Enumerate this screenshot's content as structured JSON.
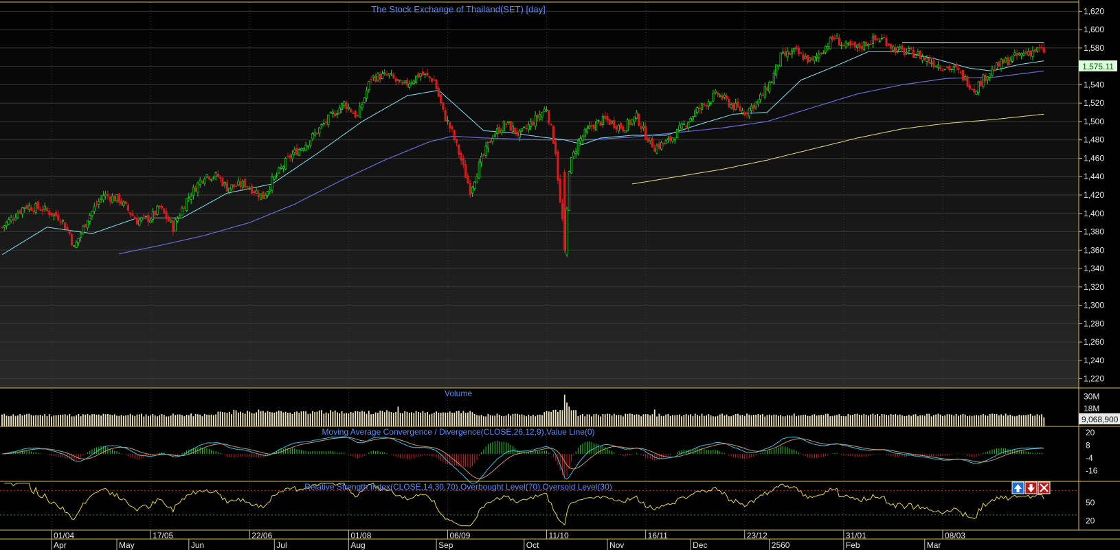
{
  "price_panel": {
    "title": "The Stock Exchange of Thailand(SET) [day]",
    "last_value_label": "1,575.11",
    "y_ticks": [
      "1,620",
      "1,600",
      "1,580",
      "1,560",
      "1,540",
      "1,520",
      "1,500",
      "1,480",
      "1,460",
      "1,440",
      "1,420",
      "1,400",
      "1,380",
      "1,360",
      "1,340",
      "1,320",
      "1,300",
      "1,280",
      "1,260",
      "1,240",
      "1,220"
    ]
  },
  "volume_panel": {
    "title": "Volume",
    "y_ticks": [
      "30M",
      "18M"
    ],
    "last_value_label": "9,068,900"
  },
  "macd_panel": {
    "title": "Moving Average Convergence / Divergence(CLOSE,26,12,9),Value Line(0)",
    "y_ticks": [
      "20",
      "8",
      "-4",
      "-16"
    ]
  },
  "rsi_panel": {
    "title": "Relative Strength Index(CLOSE,14,30,70),Overbought Level(70),Oversold Level(30)",
    "y_ticks": [
      "50",
      "20"
    ]
  },
  "x_axis": {
    "date_labels": [
      "01/04",
      "17/05",
      "22/06",
      "01/08",
      "06/09",
      "11/10",
      "16/11",
      "23/12",
      "31/01",
      "08/03"
    ],
    "month_labels": [
      "Apr",
      "May",
      "Jun",
      "Jul",
      "Aug",
      "Sep",
      "Oct",
      "Nov",
      "Dec",
      "2560",
      "Feb",
      "Mar"
    ]
  },
  "toolbar": {
    "move_up_icon": "arrow-up-icon",
    "move_down_icon": "arrow-down-icon",
    "close_icon": "close-icon"
  },
  "colors": {
    "background": "#000000",
    "grid": "#3a3a3a",
    "panel_border": "#d8c24a",
    "title": "#5b8cff",
    "up_candle": "#21d021",
    "down_candle": "#d01c1c",
    "ma_short": "#7fe6f0",
    "ma_mid": "#6b6bd8",
    "ma_long": "#e8e07a",
    "volume": "#f0e6c0",
    "macd_line": "#31c4e6",
    "macd_signal": "#c89a6a",
    "rsi_line": "#e8d84a",
    "overbought": "#c03030",
    "oversold": "#1f9a3a"
  },
  "chart_data": [
    {
      "type": "candlestick",
      "title": "The Stock Exchange of Thailand(SET) [day]",
      "ylim": [
        1210,
        1630
      ],
      "grid": true,
      "last_close": 1575.11,
      "resistance_level": 1586,
      "anchors": [
        [
          0,
          1385
        ],
        [
          10,
          1408
        ],
        [
          18,
          1405
        ],
        [
          26,
          1395
        ],
        [
          30,
          1378
        ],
        [
          32,
          1362
        ],
        [
          38,
          1395
        ],
        [
          45,
          1420
        ],
        [
          52,
          1415
        ],
        [
          60,
          1392
        ],
        [
          66,
          1395
        ],
        [
          70,
          1406
        ],
        [
          76,
          1385
        ],
        [
          82,
          1415
        ],
        [
          90,
          1442
        ],
        [
          96,
          1440
        ],
        [
          100,
          1428
        ],
        [
          108,
          1432
        ],
        [
          116,
          1418
        ],
        [
          120,
          1435
        ],
        [
          128,
          1462
        ],
        [
          136,
          1478
        ],
        [
          144,
          1500
        ],
        [
          152,
          1520
        ],
        [
          158,
          1505
        ],
        [
          164,
          1548
        ],
        [
          172,
          1550
        ],
        [
          178,
          1538
        ],
        [
          186,
          1552
        ],
        [
          192,
          1545
        ],
        [
          196,
          1510
        ],
        [
          200,
          1488
        ],
        [
          204,
          1458
        ],
        [
          208,
          1425
        ],
        [
          212,
          1452
        ],
        [
          218,
          1485
        ],
        [
          224,
          1498
        ],
        [
          230,
          1485
        ],
        [
          236,
          1500
        ],
        [
          242,
          1515
        ],
        [
          246,
          1468
        ],
        [
          248,
          1410
        ],
        [
          250,
          1375
        ],
        [
          252,
          1450
        ],
        [
          256,
          1478
        ],
        [
          262,
          1495
        ],
        [
          268,
          1502
        ],
        [
          276,
          1493
        ],
        [
          282,
          1505
        ],
        [
          286,
          1485
        ],
        [
          290,
          1472
        ],
        [
          296,
          1478
        ],
        [
          302,
          1493
        ],
        [
          308,
          1510
        ],
        [
          314,
          1523
        ],
        [
          318,
          1530
        ],
        [
          324,
          1518
        ],
        [
          330,
          1510
        ],
        [
          336,
          1522
        ],
        [
          342,
          1545
        ],
        [
          346,
          1570
        ],
        [
          352,
          1576
        ],
        [
          360,
          1565
        ],
        [
          366,
          1582
        ],
        [
          370,
          1592
        ],
        [
          374,
          1582
        ],
        [
          380,
          1580
        ],
        [
          386,
          1588
        ],
        [
          392,
          1590
        ],
        [
          396,
          1580
        ],
        [
          400,
          1576
        ],
        [
          406,
          1574
        ],
        [
          412,
          1566
        ],
        [
          418,
          1560
        ],
        [
          424,
          1556
        ],
        [
          428,
          1546
        ],
        [
          432,
          1535
        ],
        [
          438,
          1552
        ],
        [
          444,
          1563
        ],
        [
          450,
          1570
        ],
        [
          456,
          1576
        ],
        [
          461,
          1578
        ],
        [
          463,
          1575.11
        ]
      ],
      "ma_short_anchors": [
        [
          0,
          1355
        ],
        [
          20,
          1385
        ],
        [
          40,
          1378
        ],
        [
          60,
          1395
        ],
        [
          80,
          1395
        ],
        [
          100,
          1422
        ],
        [
          120,
          1432
        ],
        [
          140,
          1465
        ],
        [
          160,
          1500
        ],
        [
          180,
          1528
        ],
        [
          194,
          1534
        ],
        [
          205,
          1510
        ],
        [
          214,
          1490
        ],
        [
          225,
          1488
        ],
        [
          240,
          1483
        ],
        [
          250,
          1480
        ],
        [
          258,
          1475
        ],
        [
          266,
          1482
        ],
        [
          280,
          1485
        ],
        [
          295,
          1485
        ],
        [
          310,
          1497
        ],
        [
          325,
          1508
        ],
        [
          340,
          1510
        ],
        [
          355,
          1545
        ],
        [
          370,
          1560
        ],
        [
          385,
          1576
        ],
        [
          400,
          1576
        ],
        [
          415,
          1568
        ],
        [
          430,
          1558
        ],
        [
          440,
          1555
        ],
        [
          452,
          1562
        ],
        [
          463,
          1566
        ]
      ],
      "ma_mid_anchors": [
        [
          52,
          1356
        ],
        [
          70,
          1365
        ],
        [
          90,
          1376
        ],
        [
          110,
          1390
        ],
        [
          130,
          1410
        ],
        [
          150,
          1435
        ],
        [
          170,
          1458
        ],
        [
          190,
          1478
        ],
        [
          200,
          1484
        ],
        [
          215,
          1482
        ],
        [
          240,
          1480
        ],
        [
          260,
          1480
        ],
        [
          280,
          1483
        ],
        [
          300,
          1488
        ],
        [
          320,
          1493
        ],
        [
          340,
          1500
        ],
        [
          360,
          1515
        ],
        [
          380,
          1530
        ],
        [
          400,
          1540
        ],
        [
          420,
          1547
        ],
        [
          440,
          1548
        ],
        [
          463,
          1555
        ]
      ],
      "ma_long_anchors": [
        [
          280,
          1432
        ],
        [
          300,
          1440
        ],
        [
          320,
          1448
        ],
        [
          340,
          1458
        ],
        [
          360,
          1470
        ],
        [
          380,
          1482
        ],
        [
          400,
          1492
        ],
        [
          420,
          1498
        ],
        [
          440,
          1502
        ],
        [
          463,
          1508
        ]
      ]
    },
    {
      "type": "bar",
      "title": "Volume",
      "ylim": [
        0,
        36
      ],
      "unit": "M",
      "last_value": 9068900
    },
    {
      "type": "line",
      "title": "Moving Average Convergence / Divergence(CLOSE,26,12,9),Value Line(0)",
      "ylim": [
        -26,
        26
      ],
      "series": []
    },
    {
      "type": "line",
      "title": "Relative Strength Index(CLOSE,14,30,70),Overbought Level(70),Oversold Level(30)",
      "ylim": [
        5,
        85
      ],
      "overbought": 70,
      "oversold": 30
    }
  ]
}
